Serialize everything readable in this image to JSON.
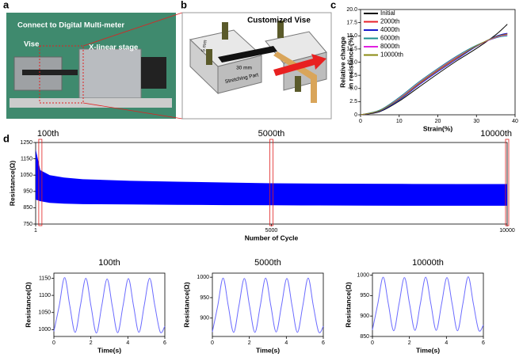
{
  "panel_a": {
    "label": "a",
    "texts": [
      "Connect to Digital Multi-meter",
      "Vise",
      "X-linear stage"
    ]
  },
  "panel_b": {
    "label": "b",
    "title": "Customized Vise",
    "texts": [
      "30 mm",
      "Stretching Part",
      "5 mm"
    ]
  },
  "chart_data": [
    {
      "type": "line",
      "panel_label": "c",
      "xlabel": "Strain(%)",
      "ylabel": [
        "Relative change",
        "in resistance (%)"
      ],
      "x": [
        0,
        5,
        10,
        15,
        20,
        25,
        30,
        35,
        38
      ],
      "series": [
        {
          "name": "Initial",
          "color": "#000000",
          "values": [
            0,
            0.6,
            2.6,
            5.2,
            7.8,
            10.3,
            12.6,
            15.2,
            17.2
          ]
        },
        {
          "name": "2000th",
          "color": "#e8202a",
          "values": [
            0,
            0.8,
            3.0,
            5.8,
            8.4,
            10.8,
            13.0,
            14.8,
            15.4
          ]
        },
        {
          "name": "4000th",
          "color": "#1a1acc",
          "values": [
            0,
            0.7,
            2.8,
            5.6,
            8.2,
            10.6,
            13.0,
            14.9,
            15.5
          ]
        },
        {
          "name": "6000th",
          "color": "#1a8f8f",
          "values": [
            0,
            0.9,
            3.3,
            6.2,
            8.8,
            11.2,
            13.2,
            14.6,
            15.0
          ]
        },
        {
          "name": "8000th",
          "color": "#e020e0",
          "values": [
            0,
            0.8,
            3.1,
            6.0,
            8.6,
            11.0,
            13.1,
            14.7,
            15.2
          ]
        },
        {
          "name": "10000th",
          "color": "#8a8a10",
          "values": [
            0,
            0.8,
            3.0,
            5.9,
            8.5,
            10.9,
            13.1,
            14.8,
            15.3
          ]
        }
      ],
      "xlim": [
        0,
        40
      ],
      "xticks": [
        0,
        10,
        20,
        30,
        40
      ],
      "ylim": [
        0,
        20
      ],
      "yticks": [
        0,
        2.5,
        {
          "value": 5,
          "label": "5.0"
        },
        7.5,
        {
          "value": 10,
          "label": "10.0"
        },
        12.5,
        {
          "value": 15,
          "label": "15.0"
        },
        17.5,
        {
          "value": 20,
          "label": "20.0"
        }
      ]
    },
    {
      "type": "band",
      "panel_label": "d",
      "color": "#0000ff",
      "xlabel": "Number of Cycle",
      "ylabel": [
        "Resistance(Ω)"
      ],
      "x": [
        1,
        100,
        300,
        600,
        1000,
        2000,
        3000,
        4000,
        5000,
        6000,
        7000,
        8000,
        9000,
        10000
      ],
      "upper": [
        1210,
        1080,
        1050,
        1035,
        1025,
        1015,
        1010,
        1005,
        1000,
        998,
        997,
        996,
        995,
        995
      ],
      "lower": [
        900,
        890,
        880,
        875,
        872,
        870,
        868,
        866,
        865,
        864,
        863,
        862,
        862,
        862
      ],
      "annotations": [
        {
          "text": "100th",
          "x": 100
        },
        {
          "text": "5000th",
          "x": 5000
        },
        {
          "text": "10000th",
          "x": 10000
        }
      ],
      "xlim": [
        1,
        10000
      ],
      "xticks": [
        1,
        5000,
        10000
      ],
      "ylim": [
        750,
        1250
      ],
      "yticks": [
        750,
        850,
        950,
        1050,
        1150,
        1250
      ]
    },
    {
      "type": "line",
      "title": "100th",
      "xlabel": "Time(s)",
      "ylabel": [
        "Resistance(Ω)"
      ],
      "x": [
        0,
        0.29,
        0.58,
        0.86,
        1.15,
        1.44,
        1.73,
        2.01,
        2.3,
        2.59,
        2.88,
        3.16,
        3.45,
        3.74,
        4.03,
        4.31,
        4.6,
        4.89,
        5.18,
        5.46,
        5.75,
        6
      ],
      "series": [
        {
          "color": "#6b6bff",
          "values": [
            995,
            1070,
            1152,
            1070,
            992,
            1072,
            1150,
            1068,
            990,
            1070,
            1148,
            1068,
            991,
            1070,
            1149,
            1069,
            992,
            1072,
            1150,
            1070,
            993,
            1010
          ]
        }
      ],
      "xlim": [
        0,
        6
      ],
      "xticks": [
        0,
        2,
        4,
        6
      ],
      "ylim": [
        980,
        1165
      ],
      "yticks": [
        1000,
        1050,
        1100,
        1150
      ]
    },
    {
      "type": "line",
      "title": "5000th",
      "xlabel": "Time(s)",
      "ylabel": [
        "Resistance(Ω)"
      ],
      "x": [
        0,
        0.29,
        0.58,
        0.86,
        1.15,
        1.44,
        1.73,
        2.01,
        2.3,
        2.59,
        2.88,
        3.16,
        3.45,
        3.74,
        4.03,
        4.31,
        4.6,
        4.89,
        5.18,
        5.46,
        5.75,
        6
      ],
      "series": [
        {
          "color": "#6b6bff",
          "values": [
            866,
            930,
            998,
            930,
            865,
            931,
            997,
            930,
            865,
            930,
            998,
            931,
            866,
            931,
            997,
            930,
            865,
            930,
            998,
            930,
            866,
            880
          ]
        }
      ],
      "xlim": [
        0,
        6
      ],
      "xticks": [
        0,
        2,
        4,
        6
      ],
      "ylim": [
        855,
        1010
      ],
      "yticks": [
        900,
        950,
        1000
      ]
    },
    {
      "type": "line",
      "title": "10000th",
      "xlabel": "Time(s)",
      "ylabel": [
        "Resistance(Ω)"
      ],
      "x": [
        0,
        0.29,
        0.58,
        0.86,
        1.15,
        1.44,
        1.73,
        2.01,
        2.3,
        2.59,
        2.88,
        3.16,
        3.45,
        3.74,
        4.03,
        4.31,
        4.6,
        4.89,
        5.18,
        5.46,
        5.75,
        6
      ],
      "series": [
        {
          "color": "#6b6bff",
          "values": [
            866,
            930,
            995,
            930,
            864,
            930,
            994,
            929,
            865,
            930,
            995,
            930,
            865,
            930,
            994,
            930,
            864,
            930,
            996,
            930,
            865,
            878
          ]
        }
      ],
      "xlim": [
        0,
        6
      ],
      "xticks": [
        0,
        2,
        4,
        6
      ],
      "ylim": [
        850,
        1005
      ],
      "yticks": [
        850,
        900,
        950,
        1000
      ]
    }
  ]
}
